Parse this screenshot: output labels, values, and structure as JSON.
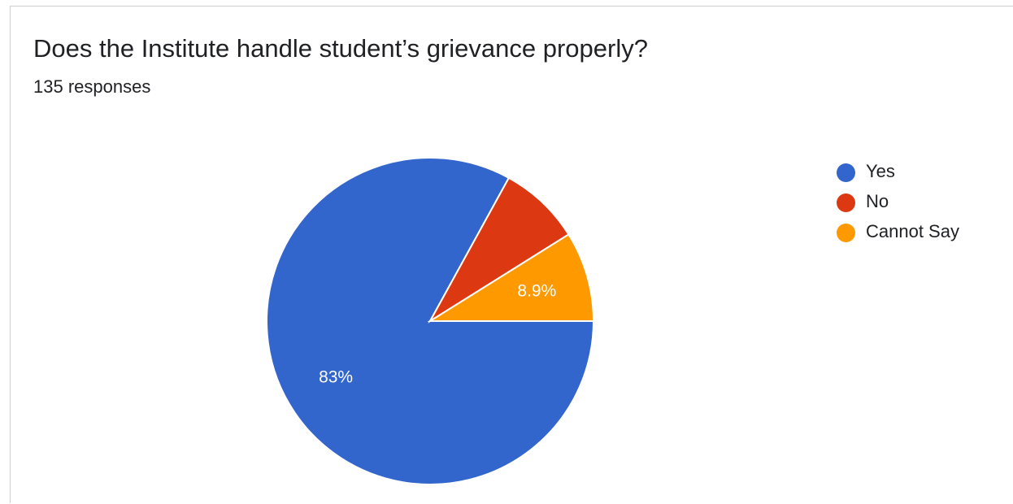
{
  "title": "Does the Institute handle student’s grievance properly?",
  "subtitle": "135 responses",
  "chart_data": {
    "type": "pie",
    "categories": [
      "Yes",
      "No",
      "Cannot Say"
    ],
    "values": [
      83,
      8.1,
      8.9
    ],
    "data_labels": [
      "83%",
      "",
      "8.9%"
    ],
    "colors": [
      "#3366cc",
      "#dc3912",
      "#ff9900"
    ],
    "legend_position": "right"
  }
}
